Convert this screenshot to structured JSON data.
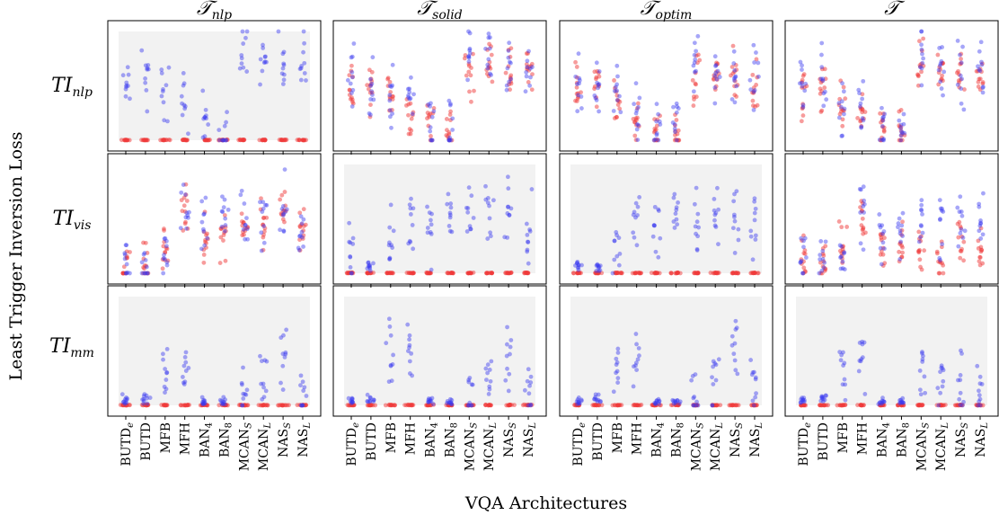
{
  "chart_data": {
    "type": "scatter",
    "ylabel": "Least Trigger Inversion Loss",
    "xlabel": "VQA Architectures",
    "columns": [
      {
        "title": "𝒯",
        "sub": "nlp"
      },
      {
        "title": "𝒯",
        "sub": "solid"
      },
      {
        "title": "𝒯",
        "sub": "optim"
      },
      {
        "title": "𝒯",
        "sub": ""
      }
    ],
    "rows": [
      {
        "label": "TI",
        "sub": "nlp"
      },
      {
        "label": "TI",
        "sub": "vis"
      },
      {
        "label": "TI",
        "sub": "mm"
      }
    ],
    "categories": [
      {
        "base": "BUTD",
        "sub": "e"
      },
      {
        "base": "BUTD",
        "sub": ""
      },
      {
        "base": "MFB",
        "sub": ""
      },
      {
        "base": "MFH",
        "sub": ""
      },
      {
        "base": "BAN",
        "sub": "4"
      },
      {
        "base": "BAN",
        "sub": "8"
      },
      {
        "base": "MCAN",
        "sub": "S"
      },
      {
        "base": "MCAN",
        "sub": "L"
      },
      {
        "base": "NAS",
        "sub": "S"
      },
      {
        "base": "NAS",
        "sub": "L"
      }
    ],
    "series_colors": {
      "clean": "#3a3af0",
      "trojan": "#f03a3a"
    },
    "shaded_background_panels": [
      [
        0,
        0
      ],
      [
        1,
        1
      ],
      [
        1,
        2
      ],
      [
        2,
        0
      ],
      [
        2,
        1
      ],
      [
        2,
        2
      ],
      [
        2,
        3
      ]
    ],
    "panels": [
      [
        {
          "row": 0,
          "col": 0,
          "clean_centers": [
            0.52,
            0.55,
            0.52,
            0.35,
            0.16,
            0.12,
            0.8,
            0.78,
            0.78,
            0.72
          ],
          "trojan_centers": [
            0.4,
            0,
            0,
            0,
            0,
            0,
            0,
            0,
            0,
            0
          ],
          "trojan_floor": true
        },
        {
          "row": 0,
          "col": 1,
          "clean_centers": [
            0.52,
            0.55,
            0.42,
            0.3,
            0.2,
            0.12,
            0.78,
            0.72,
            0.68,
            0.6
          ],
          "trojan_centers": [
            0.48,
            0.5,
            0.38,
            0.26,
            0.18,
            0.1,
            0.62,
            0.7,
            0.62,
            0.62
          ],
          "trojan_floor": false
        },
        {
          "row": 0,
          "col": 2,
          "clean_centers": [
            0.48,
            0.52,
            0.4,
            0.25,
            0.15,
            0.1,
            0.66,
            0.65,
            0.6,
            0.58
          ],
          "trojan_centers": [
            0.44,
            0.48,
            0.36,
            0.22,
            0.12,
            0.08,
            0.58,
            0.6,
            0.6,
            0.52
          ],
          "trojan_floor": false
        },
        {
          "row": 0,
          "col": 3,
          "clean_centers": [
            0.42,
            0.52,
            0.34,
            0.28,
            0.12,
            0.1,
            0.72,
            0.68,
            0.66,
            0.62
          ],
          "trojan_centers": [
            0.42,
            0.5,
            0.32,
            0.26,
            0.1,
            0.08,
            0.66,
            0.64,
            0.62,
            0.58
          ],
          "trojan_floor": false
        }
      ],
      [
        {
          "row": 1,
          "col": 0,
          "clean_centers": [
            0.1,
            0.1,
            0.2,
            0.6,
            0.45,
            0.55,
            0.5,
            0.55,
            0.6,
            0.45
          ],
          "trojan_centers": [
            0.08,
            0.08,
            0.22,
            0.55,
            0.3,
            0.35,
            0.45,
            0.45,
            0.55,
            0.4
          ],
          "trojan_floor": false
        },
        {
          "row": 1,
          "col": 1,
          "clean_centers": [
            0.08,
            0.06,
            0.25,
            0.5,
            0.4,
            0.55,
            0.5,
            0.5,
            0.55,
            0.4
          ],
          "trojan_centers": [
            0,
            0,
            0,
            0,
            0,
            0,
            0,
            0,
            0,
            0
          ],
          "trojan_floor": true
        },
        {
          "row": 1,
          "col": 2,
          "clean_centers": [
            0.06,
            0.06,
            0.2,
            0.55,
            0.4,
            0.55,
            0.55,
            0.55,
            0.55,
            0.45
          ],
          "trojan_centers": [
            0,
            0,
            0,
            0,
            0,
            0,
            0,
            0,
            0,
            0
          ],
          "trojan_floor": true
        },
        {
          "row": 1,
          "col": 3,
          "clean_centers": [
            0.08,
            0.1,
            0.22,
            0.55,
            0.35,
            0.4,
            0.45,
            0.4,
            0.5,
            0.45
          ],
          "trojan_centers": [
            0.12,
            0.12,
            0.22,
            0.5,
            0.25,
            0.3,
            0.2,
            0.15,
            0.3,
            0.2
          ],
          "trojan_floor": false
        }
      ],
      [
        {
          "row": 2,
          "col": 0,
          "clean_centers": [
            0.05,
            0.06,
            0.3,
            0.4,
            0.02,
            0.02,
            0.12,
            0.2,
            0.45,
            0.18
          ],
          "trojan_centers": [
            0,
            0,
            0,
            0,
            0,
            0,
            0,
            0,
            0,
            0
          ],
          "trojan_floor": true
        },
        {
          "row": 2,
          "col": 1,
          "clean_centers": [
            0.03,
            0.06,
            0.45,
            0.5,
            0.02,
            0.02,
            0.12,
            0.2,
            0.45,
            0.18
          ],
          "trojan_centers": [
            0,
            0,
            0,
            0,
            0,
            0,
            0,
            0,
            0,
            0
          ],
          "trojan_floor": true
        },
        {
          "row": 2,
          "col": 2,
          "clean_centers": [
            0.03,
            0.06,
            0.35,
            0.45,
            0.02,
            0.02,
            0.12,
            0.2,
            0.45,
            0.18
          ],
          "trojan_centers": [
            0,
            0,
            0,
            0,
            0,
            0,
            0,
            0,
            0,
            0
          ],
          "trojan_floor": true
        },
        {
          "row": 2,
          "col": 3,
          "clean_centers": [
            0.05,
            0.06,
            0.3,
            0.4,
            0.02,
            0.02,
            0.3,
            0.15,
            0.2,
            0.15
          ],
          "trojan_centers": [
            0,
            0,
            0,
            0,
            0,
            0,
            0,
            0,
            0,
            0
          ],
          "trojan_floor": true
        }
      ]
    ]
  }
}
